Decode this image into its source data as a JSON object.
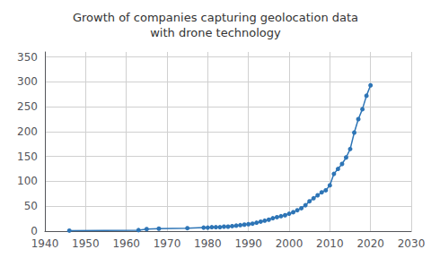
{
  "chart_data": {
    "type": "line",
    "title": "Growth of companies capturing geolocation data\nwith drone technology",
    "x": [
      1946,
      1963,
      1965,
      1968,
      1975,
      1979,
      1980,
      1981,
      1982,
      1983,
      1984,
      1985,
      1986,
      1987,
      1988,
      1989,
      1990,
      1991,
      1992,
      1993,
      1994,
      1995,
      1996,
      1997,
      1998,
      1999,
      2000,
      2001,
      2002,
      2003,
      2004,
      2005,
      2006,
      2007,
      2008,
      2009,
      2010,
      2011,
      2012,
      2013,
      2014,
      2015,
      2016,
      2017,
      2018,
      2019,
      2020
    ],
    "values": [
      1,
      2,
      4,
      5,
      6,
      7,
      7,
      8,
      8,
      8,
      9,
      9,
      10,
      11,
      12,
      13,
      14,
      15,
      17,
      19,
      21,
      23,
      26,
      28,
      30,
      32,
      35,
      38,
      42,
      46,
      52,
      60,
      66,
      72,
      78,
      82,
      92,
      115,
      125,
      135,
      148,
      165,
      198,
      225,
      245,
      272,
      293
    ],
    "color": "#2E75B6",
    "marker": "o",
    "xlim": [
      1940,
      2030
    ],
    "ylim": [
      0,
      360
    ],
    "xticks": [
      1940,
      1950,
      1960,
      1970,
      1980,
      1990,
      2000,
      2010,
      2020,
      2030
    ],
    "yticks": [
      0,
      50,
      100,
      150,
      200,
      250,
      300,
      350
    ],
    "grid": true
  }
}
